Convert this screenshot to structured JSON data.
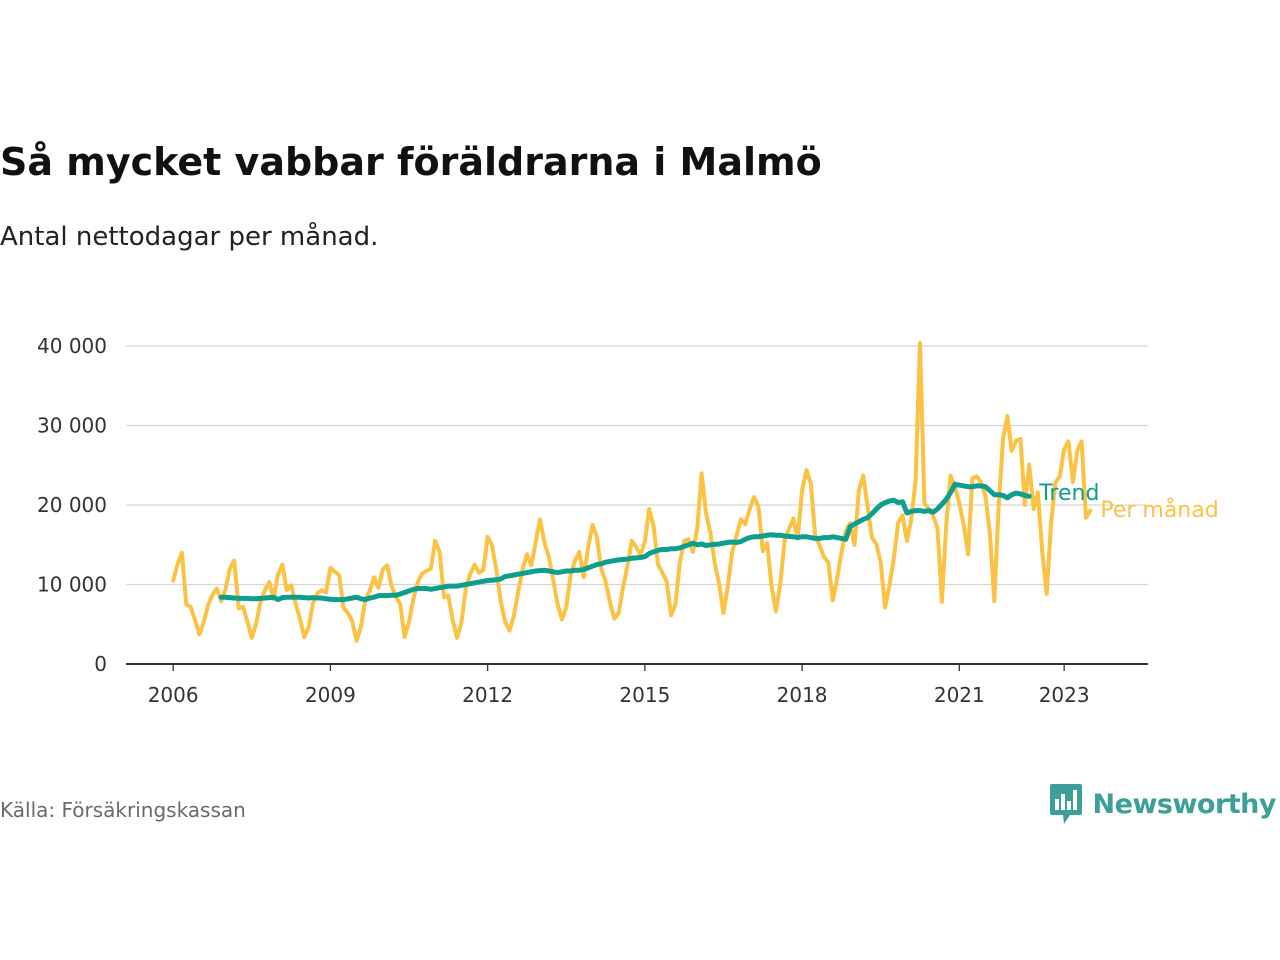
{
  "title": "Så mycket vabbar föräldrarna i Malmö",
  "subtitle": "Antal nettodagar per månad.",
  "source": "Källa: Försäkringskassan",
  "brand": "Newsworthy",
  "brand_icon": "newsworthy-logo-icon",
  "colors": {
    "monthly": "#fbc244",
    "trend": "#0d9e8e",
    "grid": "#d6d6d6",
    "axis": "#333333",
    "brand": "#3d9f97"
  },
  "chart_data": {
    "type": "line",
    "title": "Så mycket vabbar föräldrarna i Malmö",
    "subtitle": "Antal nettodagar per månad.",
    "xlabel": "",
    "ylabel": "",
    "ylim": [
      0,
      40000
    ],
    "xlim": [
      2005.1,
      2024.6
    ],
    "grid": true,
    "yticks": [
      0,
      10000,
      20000,
      30000,
      40000
    ],
    "ytick_labels": [
      "0",
      "10 000",
      "20 000",
      "30 000",
      "40 000"
    ],
    "xticks": [
      2006,
      2009,
      2012,
      2015,
      2018,
      2021,
      2023
    ],
    "xtick_labels": [
      "2006",
      "2009",
      "2012",
      "2015",
      "2018",
      "2021",
      "2023"
    ],
    "series": [
      {
        "name": "Per månad",
        "color": "#fbc244",
        "start_year": 2006,
        "values": [
          10500,
          12500,
          14000,
          7500,
          7200,
          5500,
          3700,
          5300,
          7400,
          8700,
          9500,
          7900,
          9500,
          12000,
          13000,
          7000,
          7200,
          5300,
          3300,
          5100,
          7800,
          9300,
          10300,
          8200,
          11300,
          12500,
          9300,
          9900,
          7700,
          5800,
          3400,
          4600,
          7600,
          8900,
          9300,
          9000,
          12100,
          11600,
          11200,
          7100,
          6400,
          5400,
          2900,
          4700,
          8100,
          9200,
          10900,
          9600,
          11900,
          12400,
          9800,
          8500,
          7500,
          3400,
          5300,
          8200,
          10300,
          11400,
          11700,
          12000,
          15500,
          14100,
          8400,
          8600,
          5500,
          3300,
          5200,
          9500,
          11300,
          12500,
          11500,
          11800,
          16000,
          14900,
          11800,
          7900,
          5300,
          4200,
          6000,
          9100,
          11900,
          13800,
          12400,
          15300,
          18200,
          15300,
          13500,
          10600,
          7600,
          5600,
          7100,
          11200,
          13000,
          14100,
          10900,
          14600,
          17500,
          16000,
          12000,
          10400,
          7800,
          5700,
          6400,
          9600,
          12300,
          15500,
          14700,
          13700,
          15400,
          19500,
          17300,
          12500,
          11500,
          10400,
          6100,
          7500,
          12700,
          15500,
          15700,
          14100,
          17100,
          24000,
          19000,
          16500,
          12700,
          10100,
          6400,
          9800,
          14100,
          16200,
          18200,
          17600,
          19500,
          21000,
          19800,
          14200,
          15200,
          9800,
          6600,
          10100,
          15500,
          17000,
          18300,
          15800,
          21900,
          24400,
          22700,
          16100,
          14900,
          13500,
          12800,
          8000,
          10600,
          14000,
          16800,
          17700,
          15000,
          21800,
          23700,
          19800,
          15900,
          15100,
          12800,
          7100,
          9800,
          13300,
          17800,
          18700,
          15500,
          18200,
          23100,
          40400,
          20200,
          19500,
          18600,
          17100,
          7800,
          17500,
          23700,
          22200,
          20200,
          17500,
          13800,
          23400,
          23600,
          22800,
          21100,
          16400,
          7900,
          19700,
          28300,
          31200,
          26800,
          28100,
          28300,
          20000,
          25100,
          19500,
          21600,
          14000,
          8800,
          17600,
          22800,
          23600,
          27000,
          28000,
          22900,
          26800,
          28000,
          18400,
          19300
        ],
        "style": "thin"
      },
      {
        "name": "Trend",
        "color": "#0d9e8e",
        "start_year": 2006.917,
        "values": [
          8400,
          8400,
          8350,
          8300,
          8250,
          8250,
          8250,
          8200,
          8200,
          8250,
          8300,
          8350,
          8400,
          8100,
          8350,
          8400,
          8400,
          8400,
          8400,
          8350,
          8300,
          8350,
          8300,
          8300,
          8200,
          8150,
          8100,
          8100,
          8100,
          8200,
          8300,
          8400,
          8200,
          8100,
          8300,
          8400,
          8600,
          8600,
          8600,
          8650,
          8650,
          8800,
          9000,
          9200,
          9400,
          9500,
          9500,
          9500,
          9400,
          9500,
          9600,
          9700,
          9800,
          9800,
          9800,
          9900,
          10000,
          10100,
          10200,
          10300,
          10400,
          10500,
          10550,
          10600,
          10700,
          11000,
          11100,
          11200,
          11300,
          11400,
          11500,
          11600,
          11700,
          11750,
          11800,
          11700,
          11600,
          11500,
          11600,
          11700,
          11700,
          11800,
          11800,
          11900,
          12100,
          12300,
          12500,
          12600,
          12800,
          12900,
          13000,
          13100,
          13150,
          13200,
          13300,
          13350,
          13400,
          13500,
          13900,
          14100,
          14300,
          14400,
          14400,
          14500,
          14500,
          14600,
          14800,
          15000,
          15200,
          15000,
          15100,
          14900,
          15000,
          15050,
          15100,
          15200,
          15300,
          15350,
          15300,
          15400,
          15700,
          15900,
          16000,
          16000,
          16100,
          16200,
          16250,
          16200,
          16200,
          16100,
          16050,
          16000,
          15900,
          16000,
          16000,
          15900,
          15800,
          15800,
          15900,
          15900,
          16000,
          15900,
          15800,
          15700,
          17300,
          17600,
          17900,
          18200,
          18400,
          18900,
          19500,
          20000,
          20300,
          20500,
          20600,
          20300,
          20400,
          19000,
          19200,
          19300,
          19300,
          19200,
          19300,
          19100,
          19500,
          20100,
          20700,
          21600,
          22600,
          22500,
          22400,
          22300,
          22300,
          22400,
          22400,
          22300,
          21800,
          21300,
          21300,
          21200,
          20900,
          21300,
          21500,
          21400,
          21200,
          21100
        ],
        "style": "thick"
      }
    ],
    "series_labels": [
      "Trend",
      "Per månad"
    ]
  }
}
